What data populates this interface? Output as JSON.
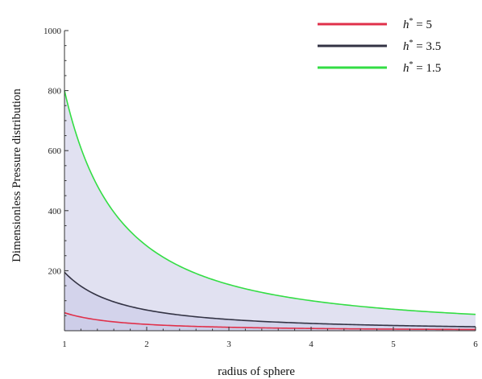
{
  "chart_data": {
    "type": "area",
    "title": "",
    "xlabel": "radius of sphere",
    "ylabel": "Dimensionless Pressure distribution",
    "xlim": [
      1,
      6
    ],
    "ylim": [
      0,
      1000
    ],
    "xticks": [
      "1",
      "2",
      "3",
      "4",
      "5",
      "6"
    ],
    "yticks": [
      "200",
      "400",
      "600",
      "800",
      "1000"
    ],
    "grid": false,
    "legend_position": "top-right",
    "series": [
      {
        "name": "h* = 5",
        "legend_symbol": "h",
        "legend_sup": "*",
        "legend_value": "= 5",
        "color": "#e0304a",
        "x": [
          1,
          1.25,
          1.5,
          1.75,
          2,
          2.5,
          3,
          3.5,
          4,
          4.5,
          5,
          5.5,
          6
        ],
        "y": [
          60,
          38,
          27,
          20,
          15,
          10,
          7,
          5,
          4,
          3,
          2.5,
          2,
          1.7
        ]
      },
      {
        "name": "h* = 3.5",
        "legend_symbol": "h",
        "legend_sup": "*",
        "legend_value": "= 3.5",
        "color": "#333344",
        "x": [
          1,
          1.25,
          1.5,
          1.75,
          2,
          2.5,
          3,
          3.5,
          4,
          4.5,
          5,
          5.5,
          6
        ],
        "y": [
          195,
          123,
          86,
          64,
          49,
          31,
          22,
          16,
          12,
          10,
          8,
          6.5,
          5.4
        ]
      },
      {
        "name": "h* = 1.5",
        "legend_symbol": "h",
        "legend_sup": "*",
        "legend_value": "= 1.5",
        "color": "#33dd44",
        "x": [
          1,
          1.25,
          1.5,
          1.75,
          2,
          2.5,
          3,
          3.5,
          4,
          4.5,
          5,
          5.5,
          6
        ],
        "y": [
          800,
          505,
          352,
          262,
          203,
          134,
          94,
          71,
          55,
          44,
          36,
          30,
          25
        ]
      }
    ],
    "fill_color": "#c8c8e6"
  }
}
